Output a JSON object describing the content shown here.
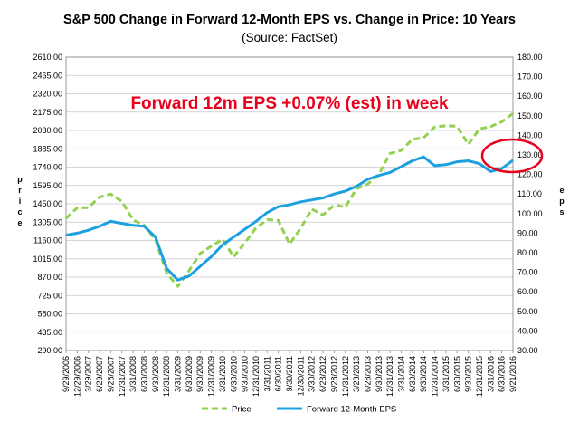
{
  "chart_data": {
    "type": "line",
    "title": "S&P 500 Change in Forward 12-Month EPS vs. Change in Price: 10 Years",
    "subtitle": "(Source: FactSet)",
    "ylabel_left": "Price",
    "ylabel_right": "EPS",
    "ylim_left": [
      290,
      2610
    ],
    "ylim_right": [
      30,
      180
    ],
    "left_ticks": [
      "2610.00",
      "2465.00",
      "2320.00",
      "2175.00",
      "2030.00",
      "1885.00",
      "1740.00",
      "1595.00",
      "1450.00",
      "1305.00",
      "1160.00",
      "1015.00",
      "870.00",
      "725.00",
      "580.00",
      "435.00",
      "290.00"
    ],
    "right_ticks": [
      "180.00",
      "170.00",
      "160.00",
      "150.00",
      "140.00",
      "130.00",
      "120.00",
      "110.00",
      "100.00",
      "90.00",
      "80.00",
      "70.00",
      "60.00",
      "50.00",
      "40.00",
      "30.00"
    ],
    "x_categories": [
      "9/29/2006",
      "12/29/2006",
      "3/29/2007",
      "6/29/2007",
      "9/28/2007",
      "12/31/2007",
      "3/31/2008",
      "6/30/2008",
      "9/30/2008",
      "12/31/2008",
      "3/31/2009",
      "6/30/2009",
      "9/30/2009",
      "12/31/2009",
      "3/31/2010",
      "6/30/2010",
      "9/30/2010",
      "12/31/2010",
      "3/31/2011",
      "6/30/2011",
      "9/30/2011",
      "12/30/2011",
      "3/30/2012",
      "6/28/2012",
      "9/28/2012",
      "12/31/2012",
      "3/28/2013",
      "6/28/2013",
      "9/30/2013",
      "12/31/2013",
      "3/31/2014",
      "6/30/2014",
      "9/30/2014",
      "12/31/2014",
      "3/31/2015",
      "6/30/2015",
      "9/30/2015",
      "12/31/2015",
      "3/31/2016",
      "6/30/2016",
      "9/21/2016"
    ],
    "grid": true,
    "legend_position": "bottom",
    "annotation": "Forward 12m EPS +0.07% (est) in week",
    "series": [
      {
        "name": "Price",
        "axis": "left",
        "style": "dashed",
        "color": "#92D050",
        "values": [
          1335,
          1418,
          1420,
          1503,
          1527,
          1468,
          1322,
          1280,
          1166,
          903,
          797,
          919,
          1057,
          1115,
          1169,
          1031,
          1141,
          1258,
          1325,
          1320,
          1131,
          1257,
          1408,
          1362,
          1440,
          1426,
          1569,
          1606,
          1682,
          1848,
          1872,
          1960,
          1972,
          2058,
          2067,
          2063,
          1920,
          2043,
          2060,
          2098,
          2164
        ]
      },
      {
        "name": "Forward 12-Month EPS",
        "axis": "right",
        "style": "solid",
        "color": "#1CA0E0",
        "values": [
          89.0,
          90.0,
          91.5,
          93.5,
          96.0,
          95.0,
          94.0,
          93.5,
          88.0,
          72.0,
          66.0,
          68.0,
          73.0,
          78.0,
          84.0,
          88.0,
          92.0,
          96.0,
          100.5,
          103.5,
          104.5,
          106.0,
          107.0,
          108.0,
          110.0,
          111.5,
          114.0,
          117.5,
          119.5,
          121.0,
          124.0,
          127.0,
          129.0,
          124.5,
          125.0,
          126.5,
          127.0,
          125.5,
          121.5,
          123.0,
          127.2
        ]
      }
    ]
  },
  "colors": {
    "annotation": "#E8001C",
    "circle": "#E8001C",
    "grid": "#C8C8C8"
  }
}
